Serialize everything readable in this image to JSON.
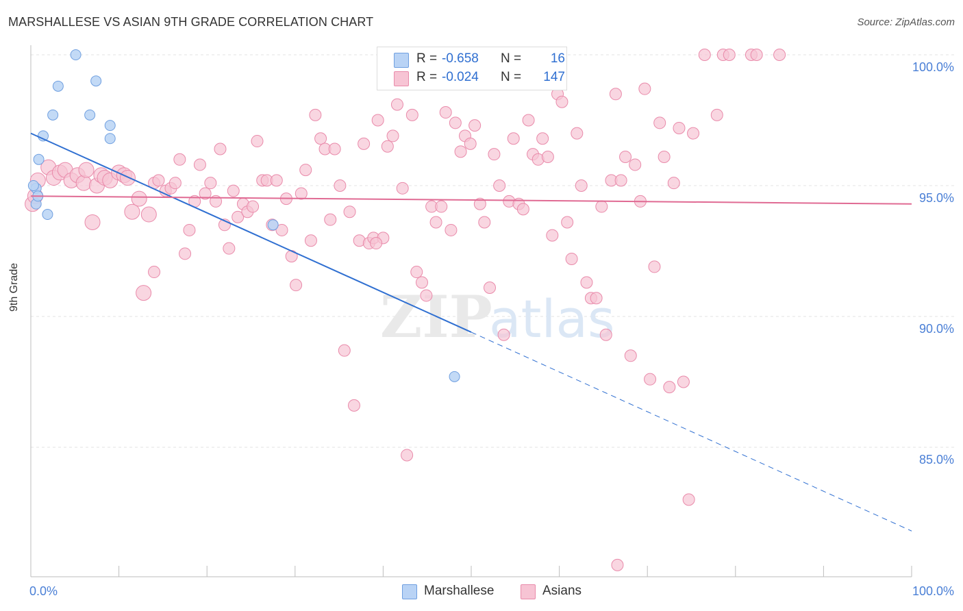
{
  "header": {
    "title": "MARSHALLESE VS ASIAN 9TH GRADE CORRELATION CHART",
    "source": "Source: ZipAtlas.com"
  },
  "watermark": {
    "zip": "ZIP",
    "atlas": "atlas"
  },
  "colors": {
    "marshallese_fill": "#b9d3f5",
    "marshallese_stroke": "#6f9fe0",
    "marshallese_line": "#2f6fd1",
    "asians_fill": "#f7c4d4",
    "asians_stroke": "#e98aaa",
    "asians_line": "#e06a93",
    "tick_label": "#4a7fd6",
    "grid": "#e3e3e3"
  },
  "legend": {
    "rows": [
      {
        "r_label": "R =",
        "r_value": "-0.658",
        "n_label": "N =",
        "n_value": "16"
      },
      {
        "r_label": "R =",
        "r_value": "-0.024",
        "n_label": "N =",
        "n_value": "147"
      }
    ],
    "bottom": [
      "Marshallese",
      "Asians"
    ]
  },
  "chart_data": {
    "type": "scatter",
    "title": "MARSHALLESE VS ASIAN 9TH GRADE CORRELATION CHART",
    "xlabel": "",
    "ylabel": "9th Grade",
    "xlim": [
      0,
      100
    ],
    "ylim": [
      80,
      100.5
    ],
    "x_tick_labels": [
      "0.0%",
      "100.0%"
    ],
    "y_ticks": [
      85,
      90,
      95,
      100
    ],
    "y_tick_labels": [
      "85.0%",
      "90.0%",
      "95.0%",
      "100.0%"
    ],
    "grid": true,
    "series": [
      {
        "name": "Marshallese",
        "points": [
          [
            0.6,
            94.3
          ],
          [
            0.6,
            94.9
          ],
          [
            0.8,
            94.6
          ],
          [
            0.9,
            96.0
          ],
          [
            1.4,
            96.9
          ],
          [
            1.9,
            93.9
          ],
          [
            2.5,
            97.7
          ],
          [
            3.1,
            98.8
          ],
          [
            5.1,
            100.0
          ],
          [
            6.7,
            97.7
          ],
          [
            7.4,
            99.0
          ],
          [
            9.0,
            97.3
          ],
          [
            9.0,
            96.8
          ],
          [
            27.5,
            93.5
          ],
          [
            48.1,
            87.7
          ],
          [
            0.3,
            95.0
          ]
        ],
        "trend": {
          "x0": 0,
          "y0": 97.0,
          "x1": 100,
          "y1": 81.8,
          "solid_until": 50
        }
      },
      {
        "name": "Asians",
        "points": [
          [
            0.2,
            94.3
          ],
          [
            0.5,
            94.6
          ],
          [
            0.8,
            95.2
          ],
          [
            2.0,
            95.7
          ],
          [
            2.6,
            95.3
          ],
          [
            3.3,
            95.5
          ],
          [
            3.9,
            95.6
          ],
          [
            4.6,
            95.2
          ],
          [
            5.3,
            95.4
          ],
          [
            6.0,
            95.1
          ],
          [
            6.3,
            95.6
          ],
          [
            7.0,
            93.6
          ],
          [
            7.5,
            95.0
          ],
          [
            8.0,
            95.4
          ],
          [
            8.4,
            95.3
          ],
          [
            9.0,
            95.2
          ],
          [
            10.0,
            95.5
          ],
          [
            10.6,
            95.4
          ],
          [
            11.0,
            95.3
          ],
          [
            11.5,
            94.0
          ],
          [
            12.3,
            94.5
          ],
          [
            12.8,
            90.9
          ],
          [
            13.4,
            93.9
          ],
          [
            14.0,
            95.1
          ],
          [
            14.5,
            95.2
          ],
          [
            14.0,
            91.7
          ],
          [
            15.3,
            94.8
          ],
          [
            15.9,
            94.9
          ],
          [
            16.4,
            95.1
          ],
          [
            16.9,
            96.0
          ],
          [
            17.5,
            92.4
          ],
          [
            18.0,
            93.3
          ],
          [
            18.6,
            94.4
          ],
          [
            19.2,
            95.8
          ],
          [
            19.8,
            94.7
          ],
          [
            20.4,
            95.1
          ],
          [
            21.0,
            94.4
          ],
          [
            21.5,
            96.4
          ],
          [
            22.0,
            93.5
          ],
          [
            22.5,
            92.6
          ],
          [
            23.0,
            94.8
          ],
          [
            23.5,
            93.8
          ],
          [
            24.1,
            94.3
          ],
          [
            24.6,
            94.0
          ],
          [
            25.2,
            94.2
          ],
          [
            25.7,
            96.7
          ],
          [
            26.3,
            95.2
          ],
          [
            26.8,
            95.2
          ],
          [
            27.4,
            93.5
          ],
          [
            27.9,
            95.2
          ],
          [
            28.5,
            93.3
          ],
          [
            29.0,
            94.5
          ],
          [
            29.6,
            92.3
          ],
          [
            30.1,
            91.2
          ],
          [
            30.7,
            94.7
          ],
          [
            31.2,
            95.6
          ],
          [
            31.8,
            92.9
          ],
          [
            32.3,
            97.7
          ],
          [
            32.9,
            96.8
          ],
          [
            33.4,
            96.4
          ],
          [
            34.0,
            93.7
          ],
          [
            34.5,
            96.4
          ],
          [
            35.1,
            95.0
          ],
          [
            35.6,
            88.7
          ],
          [
            36.2,
            94.0
          ],
          [
            36.7,
            86.6
          ],
          [
            37.3,
            92.9
          ],
          [
            37.8,
            96.6
          ],
          [
            38.4,
            92.8
          ],
          [
            38.9,
            93.0
          ],
          [
            39.4,
            97.5
          ],
          [
            40.0,
            93.0
          ],
          [
            40.5,
            96.5
          ],
          [
            41.1,
            96.9
          ],
          [
            41.6,
            98.1
          ],
          [
            42.2,
            94.9
          ],
          [
            42.7,
            84.7
          ],
          [
            43.3,
            97.7
          ],
          [
            43.8,
            91.7
          ],
          [
            44.4,
            91.3
          ],
          [
            44.9,
            90.8
          ],
          [
            45.5,
            94.2
          ],
          [
            46.0,
            93.6
          ],
          [
            46.6,
            94.2
          ],
          [
            47.1,
            97.8
          ],
          [
            47.7,
            93.3
          ],
          [
            48.2,
            97.4
          ],
          [
            48.8,
            96.3
          ],
          [
            49.3,
            96.9
          ],
          [
            49.9,
            96.6
          ],
          [
            50.4,
            97.3
          ],
          [
            51.0,
            94.3
          ],
          [
            51.5,
            93.6
          ],
          [
            52.1,
            91.1
          ],
          [
            52.6,
            96.2
          ],
          [
            53.2,
            95.0
          ],
          [
            53.7,
            89.3
          ],
          [
            54.3,
            94.4
          ],
          [
            54.8,
            96.8
          ],
          [
            55.4,
            94.3
          ],
          [
            55.9,
            94.1
          ],
          [
            56.5,
            97.5
          ],
          [
            57.0,
            96.2
          ],
          [
            57.6,
            96.0
          ],
          [
            58.1,
            96.8
          ],
          [
            58.7,
            96.1
          ],
          [
            59.2,
            93.1
          ],
          [
            59.8,
            98.5
          ],
          [
            60.3,
            98.2
          ],
          [
            60.9,
            93.6
          ],
          [
            61.4,
            92.2
          ],
          [
            62.0,
            97.0
          ],
          [
            62.5,
            95.0
          ],
          [
            63.1,
            91.3
          ],
          [
            63.6,
            90.7
          ],
          [
            64.2,
            90.7
          ],
          [
            64.8,
            94.2
          ],
          [
            65.3,
            89.3
          ],
          [
            65.9,
            95.2
          ],
          [
            66.4,
            98.5
          ],
          [
            67.0,
            95.2
          ],
          [
            67.5,
            96.1
          ],
          [
            68.1,
            88.5
          ],
          [
            68.6,
            95.8
          ],
          [
            69.2,
            94.4
          ],
          [
            69.7,
            98.7
          ],
          [
            70.3,
            87.6
          ],
          [
            70.8,
            91.9
          ],
          [
            71.4,
            97.4
          ],
          [
            71.9,
            96.1
          ],
          [
            72.5,
            87.3
          ],
          [
            73.0,
            95.1
          ],
          [
            73.6,
            97.2
          ],
          [
            74.1,
            87.5
          ],
          [
            74.7,
            83.0
          ],
          [
            75.2,
            97.0
          ],
          [
            76.5,
            100.0
          ],
          [
            77.9,
            97.7
          ],
          [
            78.6,
            100.0
          ],
          [
            79.3,
            100.0
          ],
          [
            81.8,
            100.0
          ],
          [
            82.4,
            100.0
          ],
          [
            85.0,
            100.0
          ],
          [
            66.6,
            80.5
          ],
          [
            39.2,
            92.8
          ]
        ],
        "trend": {
          "x0": 0,
          "y0": 94.6,
          "x1": 100,
          "y1": 94.3
        }
      }
    ]
  }
}
